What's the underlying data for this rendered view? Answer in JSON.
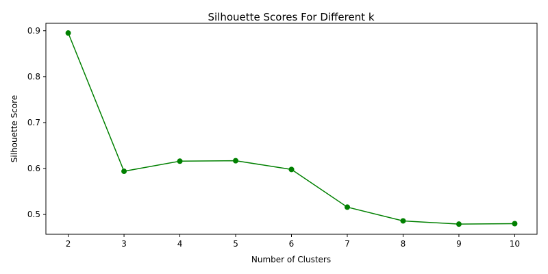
{
  "chart_data": {
    "type": "line",
    "title": "Silhouette Scores For Different k",
    "xlabel": "Number of Clusters",
    "ylabel": "Silhouette Score",
    "x": [
      2,
      3,
      4,
      5,
      6,
      7,
      8,
      9,
      10
    ],
    "series": [
      {
        "values": [
          0.895,
          0.594,
          0.616,
          0.617,
          0.598,
          0.516,
          0.486,
          0.479,
          0.48
        ],
        "color": "#008000",
        "marker": "circle"
      }
    ],
    "xlim": [
      1.6,
      10.4
    ],
    "ylim": [
      0.4569,
      0.9161
    ],
    "xticks": [
      2,
      3,
      4,
      5,
      6,
      7,
      8,
      9,
      10
    ],
    "yticks": [
      0.5,
      0.6,
      0.7,
      0.8,
      0.9
    ],
    "ytick_labels": [
      "0.5",
      "0.6",
      "0.7",
      "0.8",
      "0.9"
    ],
    "grid": false,
    "legend": "none"
  }
}
